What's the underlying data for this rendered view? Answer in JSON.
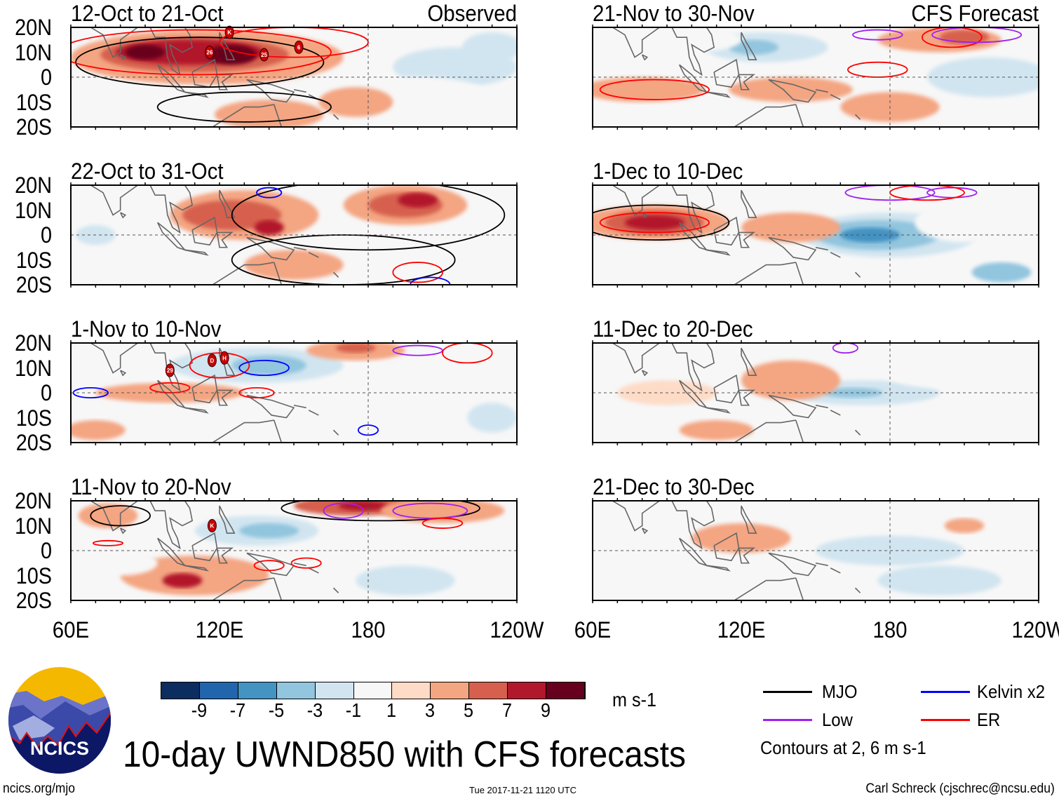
{
  "figure_title": "10-day UWND850 with CFS forecasts",
  "site": "ncics.org/mjo",
  "timestamp": "Tue 2017-11-21 1120 UTC",
  "author": "Carl Schreck (cjschrec@ncsu.edu)",
  "logo_text": "NCICS",
  "colorbar": {
    "colors": [
      "#0b2d5f",
      "#2166ac",
      "#4393c3",
      "#92c5de",
      "#d1e5f0",
      "#f7f7f7",
      "#fddbc7",
      "#f4a582",
      "#d6604d",
      "#b2182b",
      "#67001f"
    ],
    "ticks": [
      "-9",
      "-7",
      "-5",
      "-3",
      "-1",
      "1",
      "3",
      "5",
      "7",
      "9"
    ],
    "units": "m s-1"
  },
  "legend": {
    "items": [
      {
        "label": "MJO",
        "color": "#000000"
      },
      {
        "label": "Kelvin x2",
        "color": "#0000ff"
      },
      {
        "label": "Low",
        "color": "#a020f0"
      },
      {
        "label": "ER",
        "color": "#ff0000"
      }
    ],
    "note": "Contours at 2, 6 m s-1"
  },
  "chart_data": {
    "type": "heatmap",
    "variable": "850-hPa zonal wind anomaly",
    "units": "m s-1",
    "lon_range": [
      60,
      240
    ],
    "lat_range": [
      -20,
      20
    ],
    "lat_ticks": [
      "20N",
      "10N",
      "0",
      "10S",
      "20S"
    ],
    "lon_ticks": [
      "60E",
      "120E",
      "180",
      "120W"
    ],
    "column_labels": [
      "Observed",
      "CFS Forecast"
    ],
    "panels": [
      {
        "title": "12-Oct to 21-Oct",
        "tag": "Observed",
        "shading": [
          [
            115,
            8,
            55,
            11,
            3
          ],
          [
            110,
            9,
            38,
            7,
            5
          ],
          [
            108,
            10,
            30,
            5,
            7
          ],
          [
            125,
            9,
            10,
            4,
            9
          ],
          [
            90,
            10,
            8,
            3,
            9
          ],
          [
            140,
            -15,
            22,
            6,
            3
          ],
          [
            70,
            -12,
            12,
            6,
            -1
          ],
          [
            215,
            4,
            25,
            8,
            -3
          ],
          [
            230,
            12,
            12,
            6,
            -3
          ],
          [
            200,
            -8,
            30,
            8,
            -1
          ],
          [
            175,
            -10,
            15,
            6,
            3
          ]
        ],
        "contours": [
          [
            "mjo",
            112,
            6,
            50,
            10
          ],
          [
            "mjo",
            130,
            -12,
            35,
            6
          ],
          [
            "er",
            110,
            10,
            55,
            9
          ],
          [
            "er",
            150,
            14,
            30,
            6
          ]
        ],
        "storms": [
          {
            "label": "K",
            "lon": 124,
            "lat": 18
          },
          {
            "label": "26",
            "lon": 116,
            "lat": 10
          },
          {
            "label": "25",
            "lon": 138,
            "lat": 9
          },
          {
            "label": "6",
            "lon": 152,
            "lat": 12
          }
        ]
      },
      {
        "title": "21-Nov to 30-Nov",
        "tag": "CFS Forecast",
        "shading": [
          [
            130,
            12,
            25,
            6,
            -3
          ],
          [
            125,
            12,
            10,
            3,
            -5
          ],
          [
            80,
            -5,
            25,
            5,
            3
          ],
          [
            140,
            -5,
            25,
            5,
            3
          ],
          [
            200,
            15,
            25,
            5,
            3
          ],
          [
            210,
            16,
            10,
            3,
            5
          ],
          [
            220,
            0,
            25,
            8,
            -3
          ],
          [
            100,
            15,
            20,
            5,
            -1
          ],
          [
            180,
            -12,
            20,
            6,
            3
          ]
        ],
        "contours": [
          [
            "er",
            85,
            -5,
            22,
            4
          ],
          [
            "er",
            175,
            3,
            12,
            3
          ],
          [
            "er",
            205,
            16,
            12,
            4
          ],
          [
            "low",
            215,
            17,
            18,
            3
          ],
          [
            "low",
            175,
            17,
            10,
            2
          ]
        ],
        "storms": []
      },
      {
        "title": "22-Oct to 31-Oct",
        "tag": "",
        "shading": [
          [
            130,
            8,
            30,
            10,
            3
          ],
          [
            125,
            8,
            20,
            6,
            5
          ],
          [
            140,
            3,
            6,
            3,
            7
          ],
          [
            195,
            12,
            25,
            8,
            3
          ],
          [
            195,
            12,
            15,
            5,
            5
          ],
          [
            200,
            14,
            8,
            3,
            7
          ],
          [
            70,
            0,
            8,
            4,
            -3
          ],
          [
            150,
            -12,
            20,
            6,
            3
          ],
          [
            225,
            -5,
            15,
            10,
            -1
          ]
        ],
        "contours": [
          [
            "mjo",
            180,
            8,
            55,
            14
          ],
          [
            "mjo",
            170,
            -10,
            45,
            10
          ],
          [
            "er",
            200,
            -15,
            10,
            4
          ],
          [
            "kelvin",
            140,
            17,
            5,
            2
          ],
          [
            "kelvin",
            205,
            -20,
            8,
            3
          ]
        ],
        "storms": []
      },
      {
        "title": "1-Dec to 10-Dec",
        "tag": "",
        "shading": [
          [
            85,
            5,
            30,
            7,
            3
          ],
          [
            85,
            5,
            20,
            5,
            5
          ],
          [
            85,
            5,
            12,
            3,
            7
          ],
          [
            180,
            0,
            35,
            9,
            -3
          ],
          [
            175,
            0,
            25,
            6,
            -5
          ],
          [
            172,
            0,
            12,
            3,
            -7
          ],
          [
            225,
            -15,
            12,
            4,
            -5
          ],
          [
            140,
            3,
            20,
            6,
            3
          ],
          [
            210,
            5,
            20,
            8,
            -1
          ]
        ],
        "contours": [
          [
            "mjo",
            85,
            5,
            30,
            7
          ],
          [
            "er",
            85,
            5,
            22,
            4
          ],
          [
            "low",
            180,
            17,
            18,
            3
          ],
          [
            "low",
            205,
            17,
            10,
            2
          ],
          [
            "er",
            195,
            17,
            15,
            3
          ]
        ],
        "storms": []
      },
      {
        "title": "1-Nov to 10-Nov",
        "tag": "",
        "shading": [
          [
            135,
            11,
            35,
            7,
            -3
          ],
          [
            140,
            11,
            15,
            4,
            -5
          ],
          [
            100,
            0,
            30,
            4,
            3
          ],
          [
            175,
            17,
            20,
            4,
            3
          ],
          [
            175,
            18,
            8,
            2,
            5
          ],
          [
            70,
            -15,
            12,
            4,
            3
          ],
          [
            200,
            -5,
            30,
            10,
            -1
          ],
          [
            230,
            -10,
            10,
            6,
            -3
          ]
        ],
        "contours": [
          [
            "er",
            120,
            11,
            12,
            5
          ],
          [
            "kelvin",
            138,
            10,
            10,
            3
          ],
          [
            "kelvin",
            68,
            0,
            7,
            2
          ],
          [
            "er",
            100,
            2,
            8,
            2
          ],
          [
            "er",
            135,
            0,
            7,
            2
          ],
          [
            "low",
            200,
            17,
            10,
            2
          ],
          [
            "er",
            220,
            16,
            10,
            4
          ],
          [
            "kelvin",
            180,
            -15,
            4,
            2
          ]
        ],
        "storms": [
          {
            "label": "29",
            "lon": 100,
            "lat": 9
          },
          {
            "label": "D",
            "lon": 117,
            "lat": 13
          },
          {
            "label": "H",
            "lon": 122,
            "lat": 14
          }
        ]
      },
      {
        "title": "11-Dec to 20-Dec",
        "tag": "",
        "shading": [
          [
            170,
            0,
            30,
            5,
            -3
          ],
          [
            165,
            0,
            12,
            2,
            -5
          ],
          [
            140,
            5,
            20,
            8,
            3
          ],
          [
            90,
            0,
            20,
            5,
            1
          ],
          [
            200,
            10,
            25,
            8,
            -1
          ],
          [
            110,
            -15,
            15,
            4,
            3
          ],
          [
            225,
            -5,
            15,
            8,
            -1
          ]
        ],
        "contours": [
          [
            "low",
            162,
            18,
            5,
            2
          ]
        ],
        "storms": []
      },
      {
        "title": "11-Nov to 20-Nov",
        "tag": "",
        "shading": [
          [
            175,
            18,
            25,
            4,
            5
          ],
          [
            178,
            18,
            10,
            2,
            7
          ],
          [
            210,
            16,
            25,
            5,
            3
          ],
          [
            135,
            8,
            25,
            6,
            -3
          ],
          [
            140,
            8,
            12,
            3,
            -5
          ],
          [
            110,
            -10,
            30,
            8,
            3
          ],
          [
            105,
            -12,
            8,
            3,
            7
          ],
          [
            195,
            -12,
            20,
            6,
            -3
          ],
          [
            75,
            14,
            12,
            5,
            3
          ],
          [
            80,
            -5,
            15,
            5,
            -1
          ]
        ],
        "contours": [
          [
            "mjo",
            80,
            14,
            12,
            4
          ],
          [
            "mjo",
            185,
            17,
            40,
            5
          ],
          [
            "low",
            170,
            16,
            8,
            3
          ],
          [
            "low",
            205,
            16,
            15,
            3
          ],
          [
            "er",
            210,
            11,
            8,
            2
          ],
          [
            "er",
            75,
            3,
            6,
            1
          ],
          [
            "er",
            155,
            -5,
            6,
            2
          ],
          [
            "er",
            140,
            -6,
            6,
            2
          ]
        ],
        "storms": [
          {
            "label": "K",
            "lon": 117,
            "lat": 10
          }
        ]
      },
      {
        "title": "21-Dec to 30-Dec",
        "tag": "",
        "shading": [
          [
            175,
            5,
            45,
            10,
            -1
          ],
          [
            180,
            0,
            30,
            6,
            -3
          ],
          [
            120,
            5,
            20,
            6,
            3
          ],
          [
            200,
            -12,
            25,
            6,
            -3
          ],
          [
            210,
            10,
            8,
            3,
            3
          ],
          [
            70,
            8,
            15,
            6,
            -1
          ]
        ],
        "contours": [],
        "storms": []
      }
    ]
  }
}
